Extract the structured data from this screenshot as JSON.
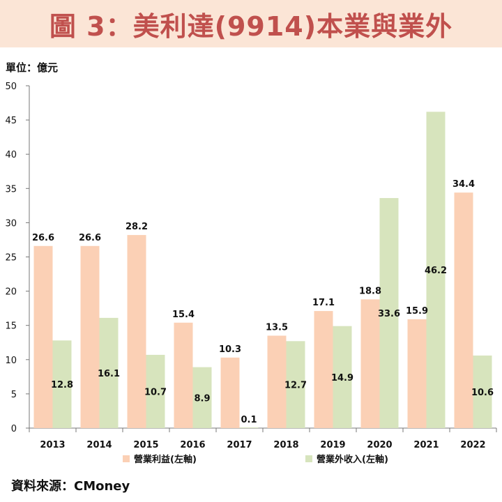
{
  "header": {
    "title": "圖 3：美利達(9914)本業與業外"
  },
  "unit_label": "單位：億元",
  "source": "資料來源：CMoney",
  "colors": {
    "title_bg": "#fbe5d6",
    "title_text": "#c0504d",
    "series_operating": "#fbd0b5",
    "series_nonoperating": "#d7e4bd"
  },
  "chart_data": {
    "type": "bar",
    "categories": [
      "2013",
      "2014",
      "2015",
      "2016",
      "2017",
      "2018",
      "2019",
      "2020",
      "2021",
      "2022"
    ],
    "series": [
      {
        "name": "營業利益(左軸)",
        "color": "#fbd0b5",
        "values": [
          26.6,
          26.6,
          28.2,
          15.4,
          10.3,
          13.5,
          17.1,
          18.8,
          15.9,
          34.4
        ]
      },
      {
        "name": "營業外收入(左軸)",
        "color": "#d7e4bd",
        "values": [
          12.8,
          16.1,
          10.7,
          8.9,
          0.1,
          12.7,
          14.9,
          33.6,
          46.2,
          10.6
        ]
      }
    ],
    "yticks": [
      "0",
      "5",
      "10",
      "15",
      "20",
      "25",
      "30",
      "35",
      "40",
      "45",
      "50"
    ],
    "ylim": [
      0,
      50
    ],
    "grid": false,
    "legend_position": "bottom"
  }
}
